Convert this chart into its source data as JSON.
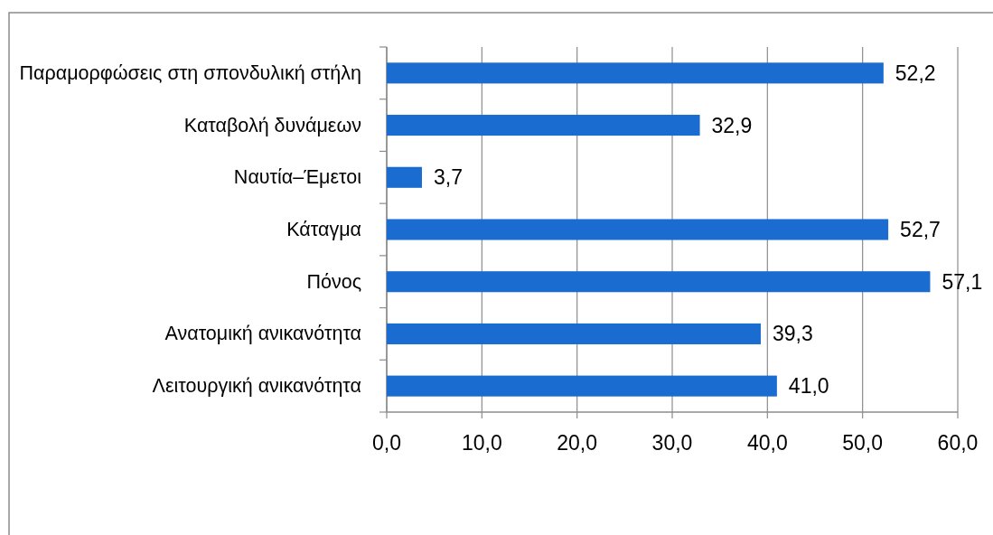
{
  "chart_data": {
    "type": "bar",
    "orientation": "horizontal",
    "categories": [
      "Παραμορφώσεις στη σπονδυλική στήλη",
      "Καταβολή δυνάμεων",
      "Ναυτία–Έμετοι",
      "Κάταγμα",
      "Πόνος",
      "Ανατομική ανικανότητα",
      "Λειτουργική ανικανότητα"
    ],
    "values": [
      52.2,
      32.9,
      3.7,
      52.7,
      57.1,
      39.3,
      41.0
    ],
    "value_labels": [
      "52,2",
      "32,9",
      "3,7",
      "52,7",
      "57,1",
      "39,3",
      "41,0"
    ],
    "color": "#1a6cd0",
    "xlim": [
      0,
      60
    ],
    "xticks": [
      {
        "value": 0,
        "label": "0,0"
      },
      {
        "value": 10,
        "label": "10,0"
      },
      {
        "value": 20,
        "label": "20,0"
      },
      {
        "value": 30,
        "label": "30,0"
      },
      {
        "value": 40,
        "label": "40,0"
      },
      {
        "value": 50,
        "label": "50,0"
      },
      {
        "value": 60,
        "label": "60,0"
      }
    ],
    "grid": "x"
  }
}
